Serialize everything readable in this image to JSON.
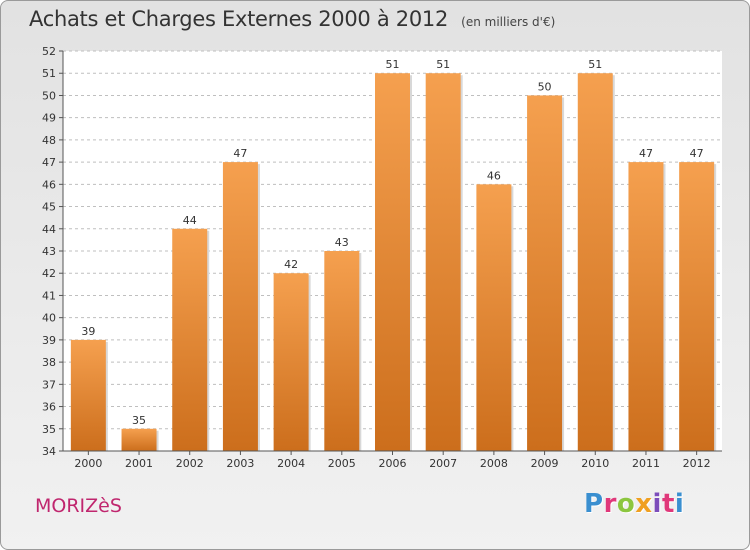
{
  "chart_data": {
    "type": "bar",
    "title": "Achats et Charges Externes 2000 à 2012",
    "subtitle": "(en milliers d'€)",
    "categories": [
      "2000",
      "2001",
      "2002",
      "2003",
      "2004",
      "2005",
      "2006",
      "2007",
      "2008",
      "2009",
      "2010",
      "2011",
      "2012"
    ],
    "values": [
      39,
      35,
      44,
      47,
      42,
      43,
      51,
      51,
      46,
      50,
      51,
      47,
      47
    ],
    "ylim": [
      34,
      52
    ],
    "yticks": [
      34,
      35,
      36,
      37,
      38,
      39,
      40,
      41,
      42,
      43,
      44,
      45,
      46,
      47,
      48,
      49,
      50,
      51,
      52
    ],
    "grid": true,
    "bar_color_top": "#f5a04f",
    "bar_color_bottom": "#cc6e1c"
  },
  "footer": {
    "commune": "MORIZèS",
    "logo": "Proxiti",
    "logo_colors": [
      "#3a8fd0",
      "#e0387a",
      "#8cc63f",
      "#f0a020",
      "#7c4dbb",
      "#e0387a",
      "#3a8fd0"
    ]
  }
}
